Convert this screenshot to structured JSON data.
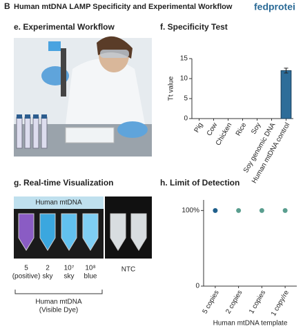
{
  "header": {
    "label": "B",
    "title": "Human mtDNA LAMP Specificity and Experimental Workflow",
    "brand": "fedprotei"
  },
  "panels": {
    "e": "e. Experimental Workflow",
    "f": "f. Specificity Test",
    "g": "g. Real-time Visualization",
    "h": "h. Limit of Detection"
  },
  "visualization": {
    "banner": "Human mtDNA",
    "ntc": "NTC",
    "tubes": [
      [
        "5",
        "(positive)"
      ],
      [
        "2",
        "sky"
      ],
      [
        "10⁷",
        "sky"
      ],
      [
        "10⁸",
        "blue"
      ]
    ],
    "caption": [
      "Human mtDNA",
      "(Visible Dye)"
    ]
  },
  "chart_data": [
    {
      "type": "bar",
      "y_label": "Tt value",
      "categories": [
        "Pig",
        "Cow",
        "Chicken",
        "Rice",
        "Soy",
        "Soy genomic DNA",
        "Human mtDNA control"
      ],
      "values": [
        null,
        null,
        null,
        null,
        null,
        null,
        12
      ],
      "errors": [
        null,
        null,
        null,
        null,
        null,
        null,
        0.6
      ],
      "color": "#2e6d99",
      "ylim": [
        0,
        15
      ],
      "yticks": [
        0,
        5,
        10,
        15
      ]
    },
    {
      "type": "dot",
      "x_label": "Human mtDNA template",
      "categories": [
        "5 copies",
        "2 copies",
        "1 copies",
        "1 copy/re"
      ],
      "values": [
        100,
        100,
        100,
        100
      ],
      "colors": [
        "#1f5f8b",
        "#5a9e8f",
        "#5a9e8f",
        "#5a9e8f"
      ],
      "ylim": [
        0,
        114
      ],
      "yticks": [
        0,
        {
          "value": 100,
          "label": "100%"
        }
      ]
    }
  ]
}
